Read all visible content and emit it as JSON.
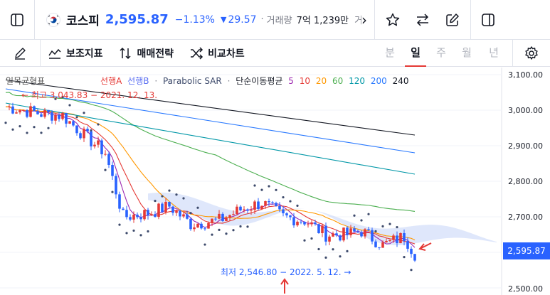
{
  "header": {
    "symbol_name": "코스피",
    "price": "2,595.87",
    "change_pct": "−1.13%",
    "change_arrow": "▼",
    "change_abs": "29.57",
    "separator": "·",
    "volume_label": "거래량",
    "volume_value": "7억 1,239만",
    "amount_label": "거래대금",
    "more_chevron": "›"
  },
  "toolbar": {
    "indicator_label": "보조지표",
    "strategy_label": "매매전략",
    "compare_label": "비교차트",
    "timeframes": [
      "분",
      "일",
      "주",
      "월",
      "년"
    ],
    "active_timeframe": "일"
  },
  "legend": {
    "ichimoku": "일목균형표",
    "span_a": "선행A",
    "span_b": "선행B",
    "psar": "Parabolic SAR",
    "dot": "·",
    "ma_label": "단순이동평균",
    "ma_periods": [
      "5",
      "10",
      "20",
      "60",
      "120",
      "200",
      "240"
    ]
  },
  "annotations": {
    "high": "← 최고 3,043.83 − 2021. 12. 13.",
    "low": "최저 2,546.80 − 2022. 5. 12. →"
  },
  "axis": {
    "labels": [
      "3,100.00",
      "3,000.00",
      "2,900.00",
      "2,800.00",
      "2,700.00",
      "2,500.00"
    ],
    "current_price": "2,595.87"
  },
  "colors": {
    "accent": "#2962ff",
    "up": "#e53935",
    "down": "#2962ff",
    "ma5": "#9c27b0",
    "ma10": "#e53935",
    "ma20": "#ff9800",
    "ma60": "#4caf50",
    "ma120": "#0097a7",
    "ma200": "#2979ff",
    "ma240": "#131722"
  }
}
